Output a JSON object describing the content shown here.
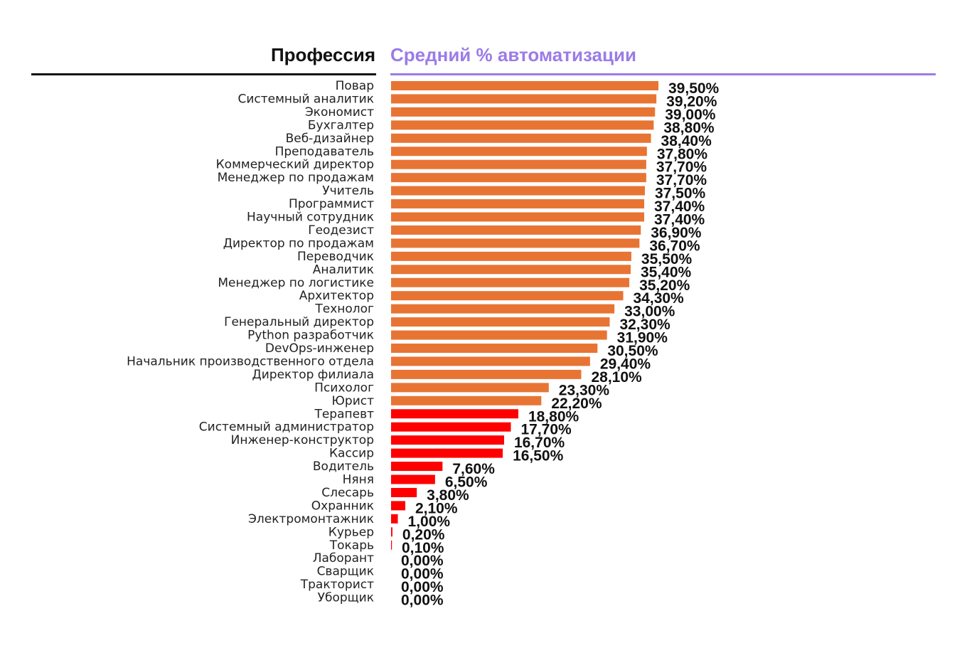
{
  "colors": {
    "high": "#E87434",
    "low": "#FF0000",
    "accent": "#9B7BE8",
    "text": "#111111"
  },
  "chart_data": {
    "type": "bar",
    "orientation": "horizontal",
    "column_left_title": "Профессия",
    "column_right_title": "Средний % автоматизации",
    "xlim": [
      0,
      39.5
    ],
    "grid": false,
    "legend": "none",
    "categories": [
      "Повар",
      "Системный аналитик",
      "Экономист",
      "Бухгалтер",
      "Веб-дизайнер",
      "Преподаватель",
      "Коммерческий директор",
      "Менеджер по продажам",
      "Учитель",
      "Программист",
      "Научный сотрудник",
      "Геодезист",
      "Директор по продажам",
      "Переводчик",
      "Аналитик",
      "Менеджер по логистике",
      "Архитектор",
      "Технолог",
      "Генеральный директор",
      "Python разработчик",
      "DevOps-инженер",
      "Начальник производственного отдела",
      "Директор филиала",
      "Психолог",
      "Юрист",
      "Терапевт",
      "Системный администратор",
      "Инженер-конструктор",
      "Кассир",
      "Водитель",
      "Няня",
      "Слесарь",
      "Охранник",
      "Электромонтажник",
      "Курьер",
      "Токарь",
      "Лаборант",
      "Сварщик",
      "Тракторист",
      "Уборщик"
    ],
    "values": [
      39.5,
      39.2,
      39.0,
      38.8,
      38.4,
      37.8,
      37.7,
      37.7,
      37.5,
      37.4,
      37.4,
      36.9,
      36.7,
      35.5,
      35.4,
      35.2,
      34.3,
      33.0,
      32.3,
      31.9,
      30.5,
      29.4,
      28.1,
      23.3,
      22.2,
      18.8,
      17.7,
      16.7,
      16.5,
      7.6,
      6.5,
      3.8,
      2.1,
      1.0,
      0.2,
      0.1,
      0.0,
      0.0,
      0.0,
      0.0
    ],
    "value_labels": [
      "39,50%",
      "39,20%",
      "39,00%",
      "38,80%",
      "38,40%",
      "37,80%",
      "37,70%",
      "37,70%",
      "37,50%",
      "37,40%",
      "37,40%",
      "36,90%",
      "36,70%",
      "35,50%",
      "35,40%",
      "35,20%",
      "34,30%",
      "33,00%",
      "32,30%",
      "31,90%",
      "30,50%",
      "29,40%",
      "28,10%",
      "23,30%",
      "22,20%",
      "18,80%",
      "17,70%",
      "16,70%",
      "16,50%",
      "7,60%",
      "6,50%",
      "3,80%",
      "2,10%",
      "1,00%",
      "0,20%",
      "0,10%",
      "0,00%",
      "0,00%",
      "0,00%",
      "0,00%"
    ],
    "color_threshold": 20
  }
}
